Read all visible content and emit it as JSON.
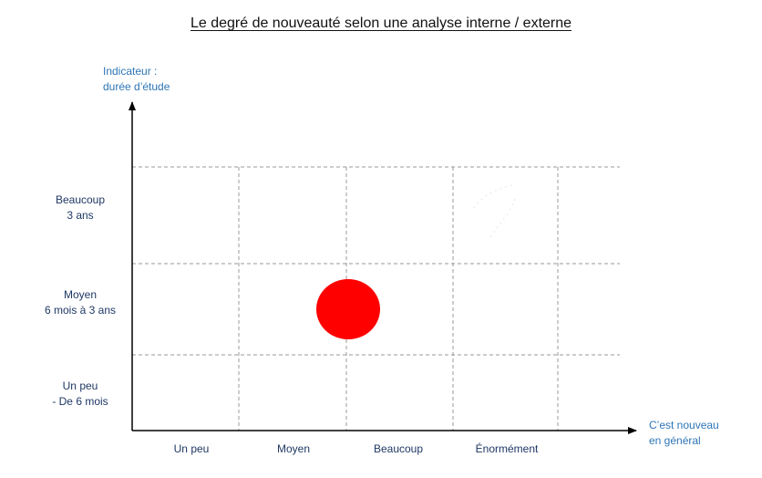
{
  "title": "Le degré de nouveauté selon une analyse interne / externe",
  "y_axis": {
    "label_line1": "Indicateur :",
    "label_line2": "durée d’étude",
    "rows": [
      {
        "line1": "Beaucoup",
        "line2": "3 ans"
      },
      {
        "line1": "Moyen",
        "line2": "6 mois à 3 ans"
      },
      {
        "line1": "Un peu",
        "line2": "- De 6 mois"
      }
    ]
  },
  "x_axis": {
    "label_line1": "C’est nouveau",
    "label_line2": "en général",
    "columns": [
      "Un peu",
      "Moyen",
      "Beaucoup",
      "Énormément"
    ]
  },
  "marker": {
    "color": "#ff0000",
    "column": "Moyen / Beaucoup",
    "row": "Moyen"
  },
  "colors": {
    "axis_label": "#2e75b6",
    "category_label": "#1f3864",
    "grid": "#9a9a9a"
  }
}
